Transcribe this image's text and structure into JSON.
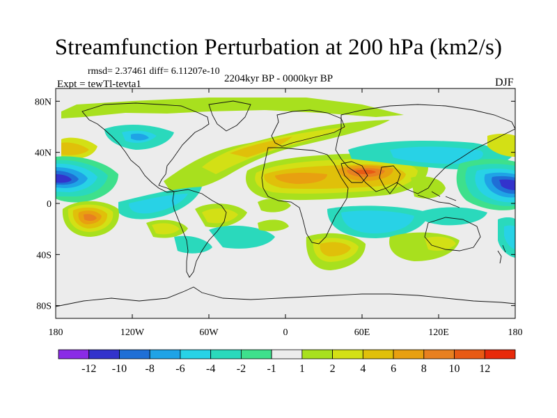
{
  "title": "Streamfunction Perturbation at 200 hPa (km2/s)",
  "stats": "rmsd= 2.37461 diff= 6.11207e-10",
  "experiment": "Expt = tewTl-tevta1",
  "period": "2204kyr BP - 0000kyr BP",
  "season": "DJF",
  "axes": {
    "lat_ticks": [
      {
        "label": "80N",
        "lat": 80
      },
      {
        "label": "40N",
        "lat": 40
      },
      {
        "label": "0",
        "lat": 0
      },
      {
        "label": "40S",
        "lat": -40
      },
      {
        "label": "80S",
        "lat": -80
      }
    ],
    "lon_ticks": [
      {
        "label": "180",
        "lon": -180
      },
      {
        "label": "120W",
        "lon": -120
      },
      {
        "label": "60W",
        "lon": -60
      },
      {
        "label": "0",
        "lon": 0
      },
      {
        "label": "60E",
        "lon": 60
      },
      {
        "label": "120E",
        "lon": 120
      },
      {
        "label": "180",
        "lon": 180
      }
    ]
  },
  "colorbar": {
    "colors": [
      "#8a2be6",
      "#3333cc",
      "#1f6fd6",
      "#1fa3e6",
      "#28d2e6",
      "#2ad9bc",
      "#3ee08c",
      "#ececec",
      "#a8e01e",
      "#d3e015",
      "#e0c00a",
      "#e8a010",
      "#e88020",
      "#e85a14",
      "#e82a0a"
    ],
    "labels": [
      "-12",
      "-10",
      "-8",
      "-6",
      "-4",
      "-2",
      "-1",
      "1",
      "2",
      "4",
      "6",
      "8",
      "10",
      "12"
    ]
  },
  "chart_data": {
    "type": "heatmap",
    "title": "Streamfunction Perturbation at 200 hPa (km2/s)",
    "units": "km2/s",
    "projection": "cylindrical equidistant",
    "lon_range": [
      -180,
      180
    ],
    "lat_range": [
      -90,
      90
    ],
    "contour_levels": [
      -12,
      -10,
      -8,
      -6,
      -4,
      -2,
      -1,
      1,
      2,
      4,
      6,
      8,
      10,
      12
    ],
    "features": [
      {
        "name": "Central North Pacific low",
        "lon": -175,
        "lat": 22,
        "value": -10
      },
      {
        "name": "Western North Pacific low",
        "lon": 172,
        "lat": 20,
        "value": -12
      },
      {
        "name": "Northeast Pacific low",
        "lon": -150,
        "lat": 48,
        "value": -4
      },
      {
        "name": "North Atlantic high band",
        "lon": -40,
        "lat": 48,
        "value": 2
      },
      {
        "name": "North Africa / Middle East high",
        "lon": 55,
        "lat": 27,
        "value": 8
      },
      {
        "name": "Subtropical South Pacific high",
        "lon": -145,
        "lat": -12,
        "value": 8
      },
      {
        "name": "Arctic high",
        "lon": 20,
        "lat": 82,
        "value": 2
      },
      {
        "name": "Indian Ocean low",
        "lon": 70,
        "lat": -15,
        "value": -2
      },
      {
        "name": "Southern Africa high",
        "lon": 35,
        "lat": -40,
        "value": 2
      },
      {
        "name": "South Pacific high",
        "lon": -55,
        "lat": -12,
        "value": 2
      }
    ]
  }
}
